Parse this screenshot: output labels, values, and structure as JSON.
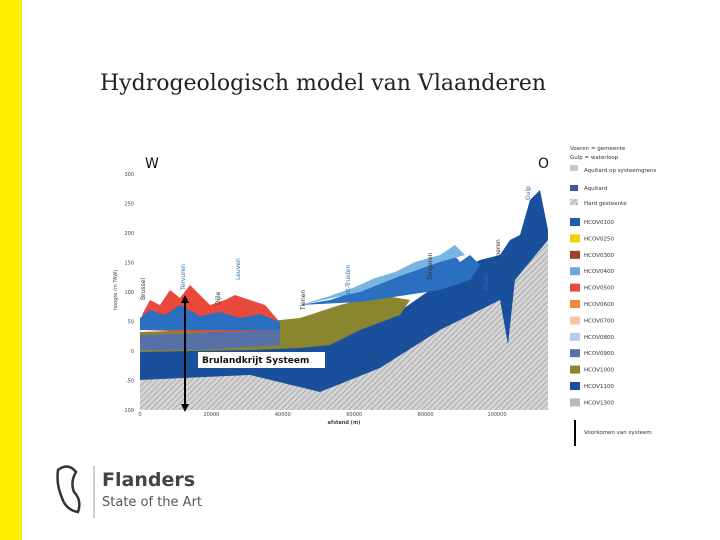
{
  "slide": {
    "title": "Hydrogeologisch model van Vlaanderen"
  },
  "figure": {
    "west": "W",
    "east": "O",
    "y_axis_label": "hoogte (m TAW)",
    "x_axis_label": "afstand (m)",
    "yticks": [
      300,
      250,
      200,
      150,
      100,
      50,
      0,
      -50,
      -100
    ],
    "xticks": [
      0,
      20000,
      40000,
      60000,
      80000,
      100000
    ],
    "system_label": "Brulandkrijt Systeem",
    "places": [
      "Brussel",
      "Tervuren",
      "Dijle",
      "Leuven",
      "Tienen",
      "Sint-Truiden",
      "Tongeren",
      "Maas",
      "Voeren",
      "Gulp"
    ],
    "legend_top": [
      "Voeren = gemeente",
      "Gulp = waterloop",
      "Aquitard op systeemgrens",
      "Aquitard",
      "Hard gesteente"
    ],
    "legend": [
      {
        "label": "HCOV0100",
        "color": "#1f5fa8"
      },
      {
        "label": "HCOV0250",
        "color": "#f0d000"
      },
      {
        "label": "HCOV0300",
        "color": "#a0402a"
      },
      {
        "label": "HCOV0400",
        "color": "#6aa8d8"
      },
      {
        "label": "HCOV0500",
        "color": "#e8493a"
      },
      {
        "label": "HCOV0600",
        "color": "#f08a3a"
      },
      {
        "label": "HCOV0700",
        "color": "#f4c4a4"
      },
      {
        "label": "HCOV0800",
        "color": "#b8cce4"
      },
      {
        "label": "HCOV0900",
        "color": "#5870a8"
      },
      {
        "label": "HCOV1000",
        "color": "#8a8630"
      },
      {
        "label": "HCOV1100",
        "color": "#1a4f9c"
      },
      {
        "label": "HCOV1300",
        "color": "#b8b8b8"
      }
    ],
    "legend_arrow": "Voorkomen van systeem"
  },
  "logo": {
    "name": "Flanders",
    "tagline": "State of the Art"
  }
}
